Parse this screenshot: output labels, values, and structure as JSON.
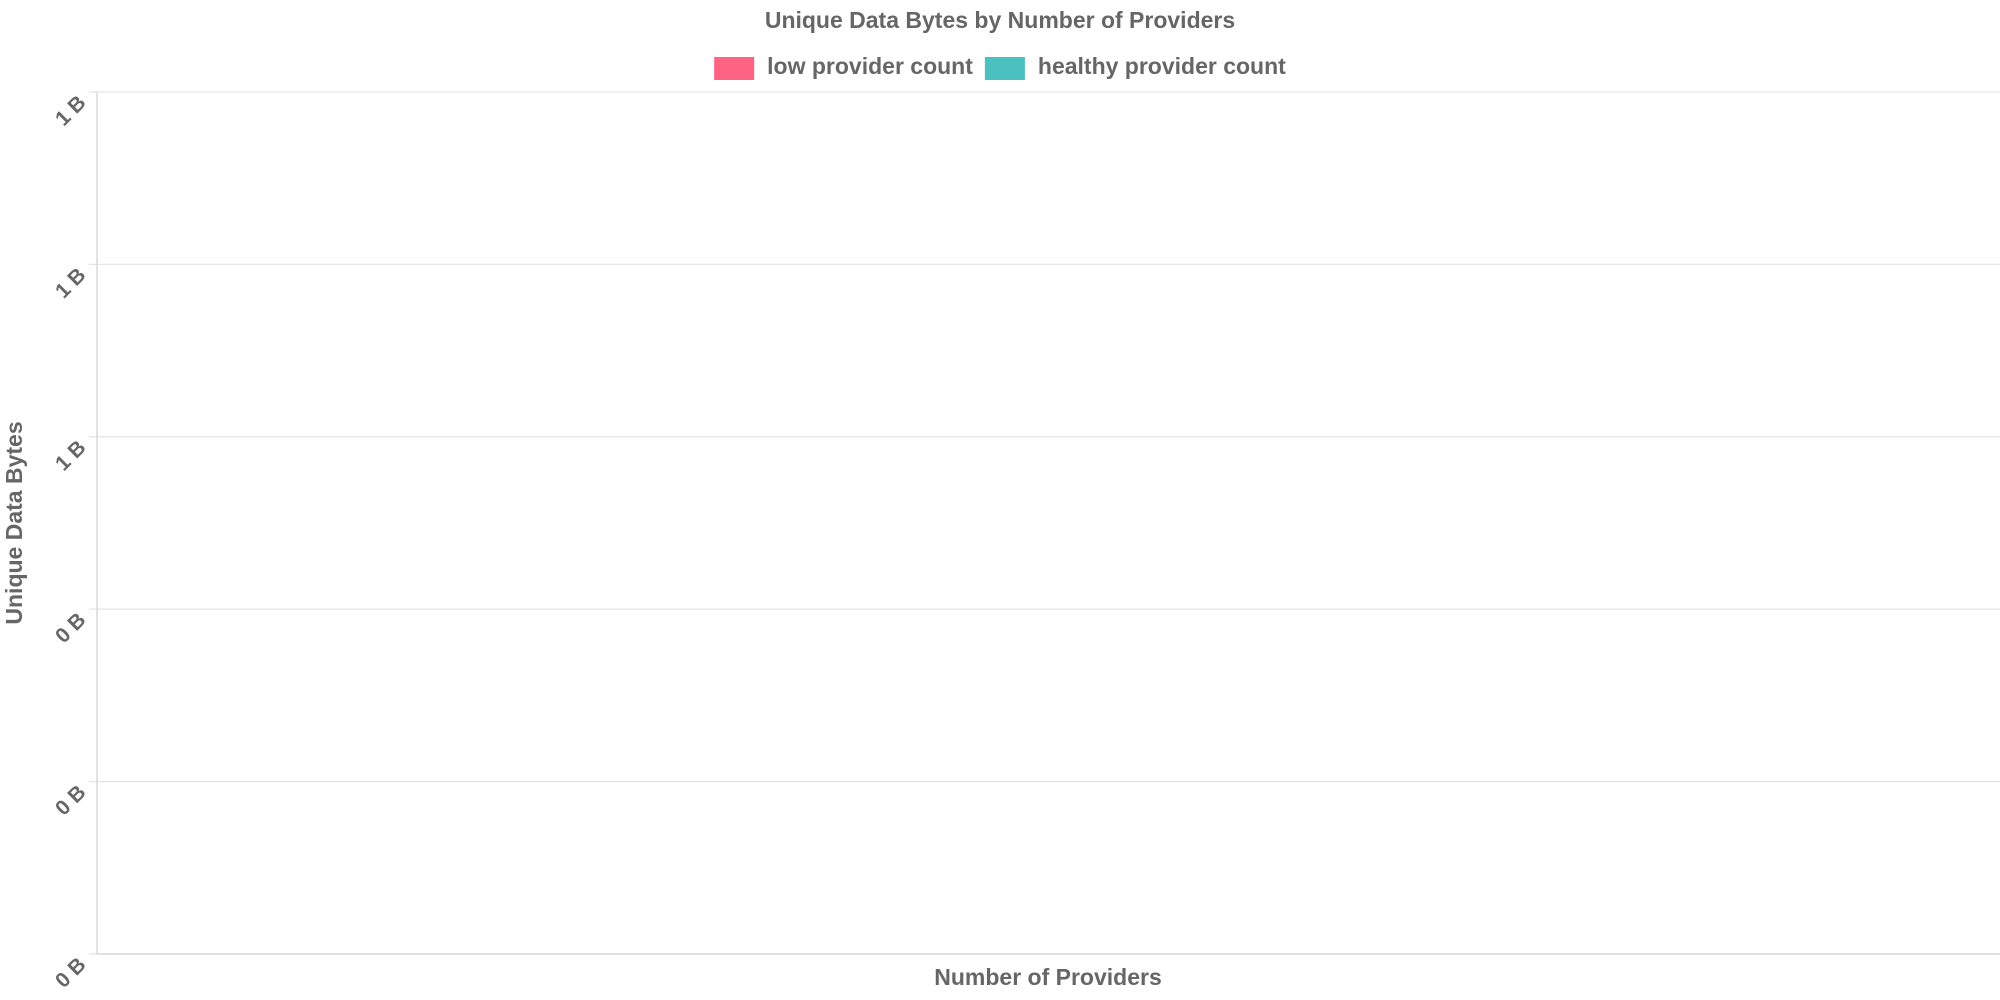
{
  "chart_data": {
    "type": "bar",
    "title": "Unique Data Bytes by Number of Providers",
    "x_label": "Number of Providers",
    "y_label": "Unique Data Bytes",
    "categories": [],
    "series": [
      {
        "name": "low provider count",
        "color": "#ff6384",
        "values": []
      },
      {
        "name": "healthy provider count",
        "color": "#4bc0c0",
        "values": []
      }
    ],
    "ylim": [
      0,
      1
    ],
    "yticks": [
      {
        "value": 0,
        "label": "0 B"
      },
      {
        "value": 0.2,
        "label": "0 B"
      },
      {
        "value": 0.4,
        "label": "0 B"
      },
      {
        "value": 0.6,
        "label": "1 B"
      },
      {
        "value": 0.8,
        "label": "1 B"
      },
      {
        "value": 1,
        "label": "1 B"
      }
    ],
    "grid": true,
    "legend": "top"
  }
}
